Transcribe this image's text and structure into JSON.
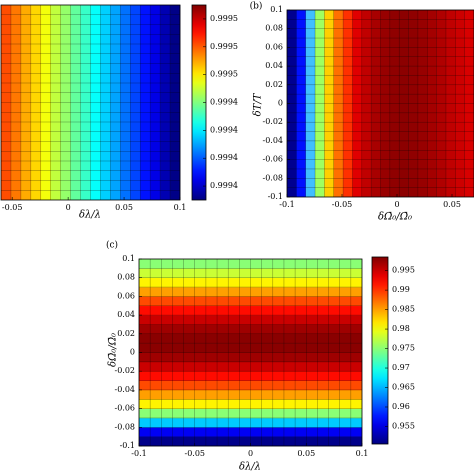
{
  "chart_data": [
    {
      "type": "heatmap",
      "orientation": "columns",
      "colormap": "jet",
      "xlabel": "δλ/λ",
      "xlim": [
        -0.06,
        0.1
      ],
      "xticks": [
        -0.05,
        0,
        0.05,
        0.1
      ],
      "values": [
        0.999482,
        0.999476,
        0.999469,
        0.999463,
        0.999456,
        0.999449,
        0.999443,
        0.999436,
        0.99943,
        0.999423,
        0.999416,
        0.99941,
        0.999403,
        0.999397,
        0.99939,
        0.999384,
        0.999377,
        0.999371
      ],
      "clim": [
        0.99937,
        0.99951
      ],
      "cticks": [
        {
          "value": 0.9995,
          "label": "0.9995"
        },
        {
          "value": 0.99948,
          "label": "0.9995"
        },
        {
          "value": 0.99946,
          "label": "0.9995"
        },
        {
          "value": 0.99944,
          "label": "0.9994"
        },
        {
          "value": 0.99942,
          "label": "0.9994"
        },
        {
          "value": 0.9994,
          "label": "0.9994"
        },
        {
          "value": 0.99938,
          "label": "0.9994"
        }
      ]
    },
    {
      "type": "heatmap",
      "orientation": "columns",
      "panel_label": "(b)",
      "xlabel": "δΩ̄₀/Ω̄₀",
      "ylabel": "δT/T",
      "xlim": [
        -0.1,
        0.07
      ],
      "xticks": [
        -0.1,
        -0.05,
        0,
        0.05
      ],
      "ylim": [
        -0.1,
        0.1
      ],
      "yticks": [
        -0.1,
        -0.08,
        -0.06,
        -0.04,
        -0.02,
        0,
        0.02,
        0.04,
        0.06,
        0.08,
        0.1
      ],
      "column_colors": [
        "#00008f",
        "#0010ff",
        "#40bfff",
        "#9fff60",
        "#ffcf00",
        "#ff7000",
        "#ff3000",
        "#e00000",
        "#c00000",
        "#a80000",
        "#980000",
        "#900000",
        "#8c0000",
        "#900000",
        "#980000",
        "#a40000",
        "#b00000",
        "#c00000",
        "#cc0000",
        "#d80000"
      ]
    },
    {
      "type": "heatmap",
      "orientation": "rows",
      "colormap": "jet",
      "panel_label": "(c)",
      "xlabel": "δλ/λ",
      "ylabel": "δΩ̄₀/Ω̄₀",
      "xlim": [
        -0.1,
        0.1
      ],
      "xticks": [
        -0.1,
        -0.05,
        0,
        0.05,
        0.1
      ],
      "ylim": [
        -0.1,
        0.1
      ],
      "yticks": [
        -0.1,
        -0.08,
        -0.06,
        -0.04,
        -0.02,
        0,
        0.02,
        0.04,
        0.06,
        0.08,
        0.1
      ],
      "values": [
        0.951,
        0.956,
        0.966,
        0.975,
        0.981,
        0.985,
        0.989,
        0.992,
        0.995,
        0.997,
        0.998,
        0.998,
        0.997,
        0.995,
        0.992,
        0.989,
        0.985,
        0.981,
        0.978,
        0.975
      ],
      "clim": [
        0.9505,
        0.9985
      ],
      "cticks": [
        0.955,
        0.96,
        0.965,
        0.97,
        0.975,
        0.98,
        0.985,
        0.99,
        0.995
      ]
    }
  ]
}
